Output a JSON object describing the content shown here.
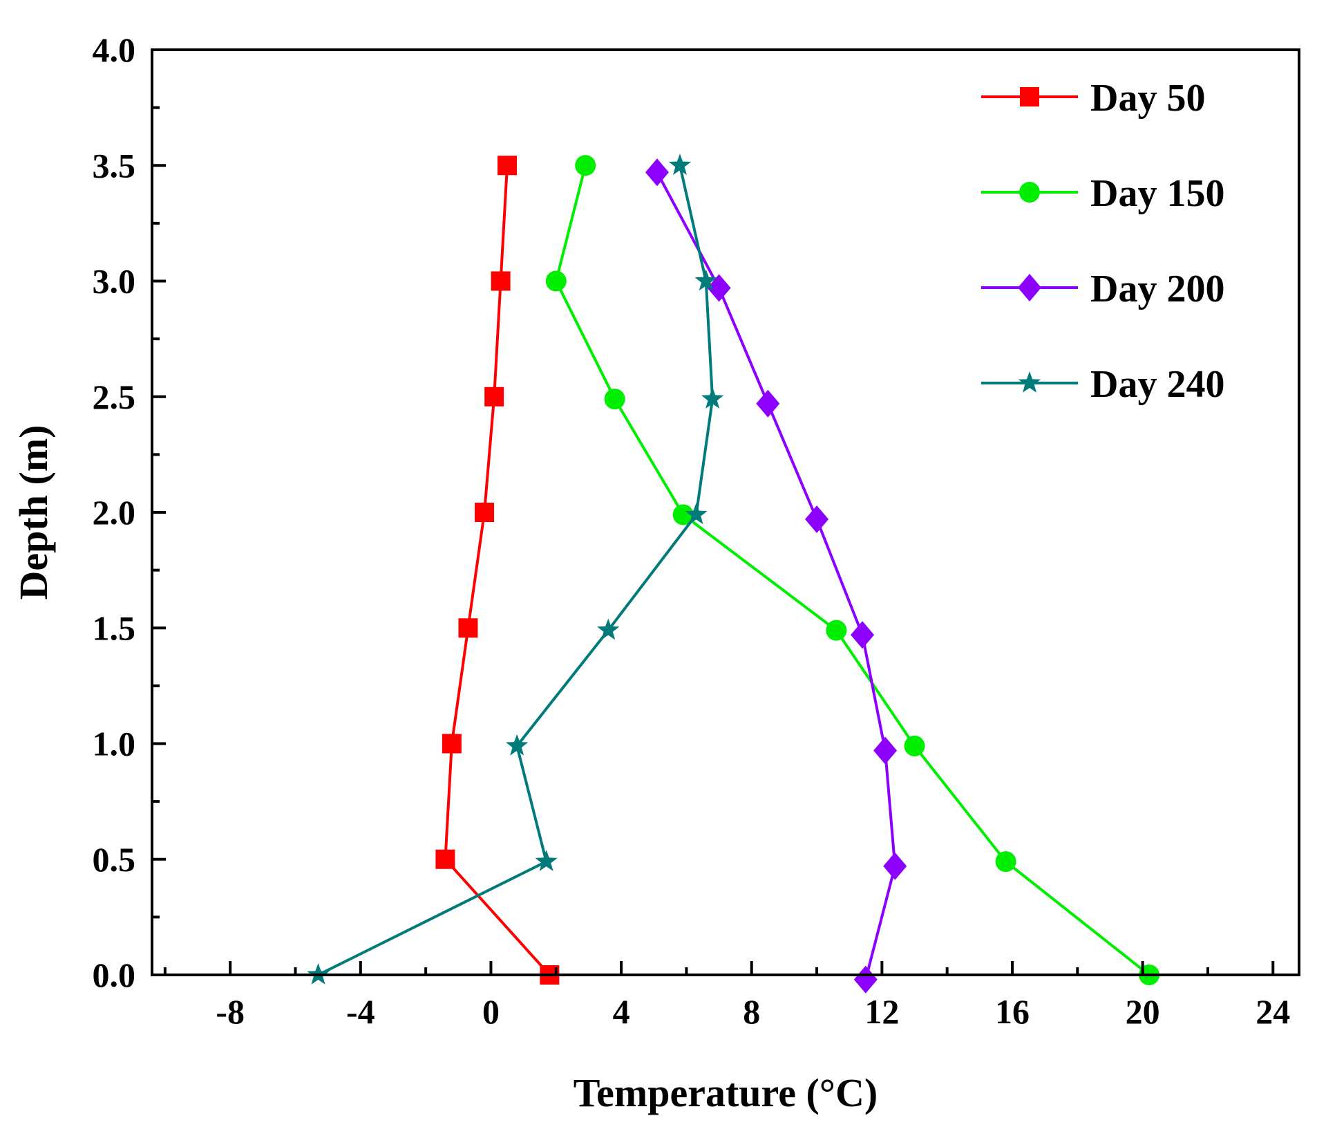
{
  "chart_data": {
    "type": "line",
    "xlabel": "Temperature (°C)",
    "ylabel": "Depth (m)",
    "xlim": [
      -10.4,
      24.8
    ],
    "ylim": [
      0,
      4
    ],
    "xticks": [
      -8,
      -4,
      0,
      4,
      8,
      12,
      16,
      20,
      24
    ],
    "xtick_labels": [
      "-8",
      "-4",
      "0",
      "4",
      "8",
      "12",
      "16",
      "20",
      "24"
    ],
    "yticks": [
      0,
      0.5,
      1,
      1.5,
      2,
      2.5,
      3,
      3.5,
      4
    ],
    "ytick_labels": [
      "0.0",
      "0.5",
      "1.0",
      "1.5",
      "2.0",
      "2.5",
      "3.0",
      "3.5",
      "4.0"
    ],
    "legend_position": "top-right",
    "series": [
      {
        "name": "Day 50",
        "label": "Day 50",
        "color": "#ff0000",
        "marker": "square",
        "x": [
          1.8,
          -1.4,
          -1.2,
          -0.7,
          -0.2,
          0.1,
          0.3,
          0.5
        ],
        "y": [
          0,
          0.5,
          1.0,
          1.5,
          2.0,
          2.5,
          3.0,
          3.5
        ]
      },
      {
        "name": "Day 150",
        "label": "Day 150",
        "color": "#00ee00",
        "marker": "circle",
        "x": [
          20.2,
          15.8,
          13.0,
          10.6,
          5.9,
          3.8,
          2.0,
          2.9
        ],
        "y": [
          0,
          0.49,
          0.99,
          1.49,
          1.99,
          2.49,
          3.0,
          3.5
        ]
      },
      {
        "name": "Day 200",
        "label": "Day 200",
        "color": "#8b00ff",
        "marker": "diamond",
        "x": [
          11.5,
          12.4,
          12.1,
          11.4,
          10.0,
          8.5,
          7.0,
          5.1
        ],
        "y": [
          -0.02,
          0.47,
          0.97,
          1.47,
          1.97,
          2.47,
          2.97,
          3.47
        ]
      },
      {
        "name": "Day 240",
        "label": "Day 240",
        "color": "#007a7a",
        "marker": "star",
        "x": [
          -5.3,
          1.7,
          0.8,
          3.6,
          6.3,
          6.8,
          6.6,
          5.8
        ],
        "y": [
          0,
          0.49,
          0.99,
          1.49,
          1.99,
          2.49,
          3.0,
          3.5
        ]
      }
    ]
  }
}
